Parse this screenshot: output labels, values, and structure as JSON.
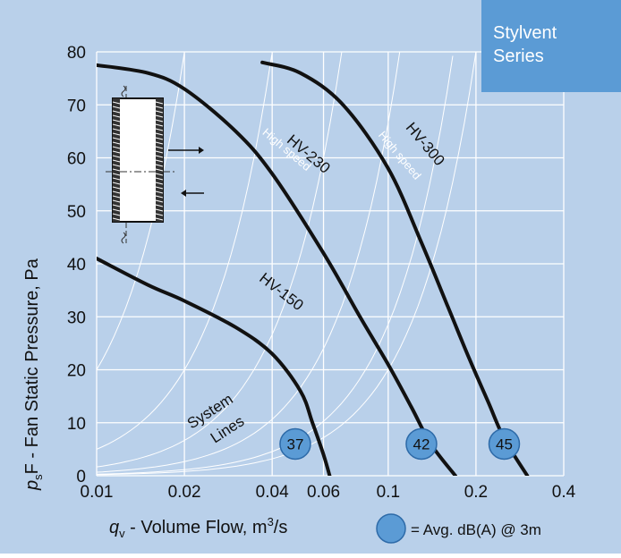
{
  "brand_box": {
    "line1": "Stylvent",
    "line2": "Series",
    "color": "#5b9bd5"
  },
  "colors": {
    "background": "#b9d0ea",
    "grid": "#ffffff",
    "curve": "#111111",
    "marker": "#5b9bd5"
  },
  "chart_data": {
    "type": "line",
    "x_scale": "log",
    "xlim": [
      0.01,
      0.4
    ],
    "ylim": [
      0,
      80
    ],
    "x_ticks": [
      0.01,
      0.02,
      0.04,
      0.06,
      0.1,
      0.2,
      0.4
    ],
    "x_tick_labels": [
      "0.01",
      "0.02",
      "0.04",
      "0.06",
      "0.1",
      "0.2",
      "0.4"
    ],
    "y_ticks": [
      0,
      10,
      20,
      30,
      40,
      50,
      60,
      70,
      80
    ],
    "y_tick_labels": [
      "0",
      "10",
      "20",
      "30",
      "40",
      "50",
      "60",
      "70",
      "80"
    ],
    "xlabel": {
      "q": "q",
      "sub": "v",
      "rest": " - Volume Flow, m",
      "sup": "3",
      "end": "/s"
    },
    "ylabel": {
      "p": "p",
      "sub": "s",
      "rest": "F - Fan Static Pressure, Pa"
    },
    "grid": true,
    "series": [
      {
        "name": "HV-150",
        "points": [
          [
            0.01,
            41
          ],
          [
            0.015,
            36
          ],
          [
            0.02,
            33
          ],
          [
            0.03,
            28
          ],
          [
            0.04,
            23
          ],
          [
            0.05,
            16
          ],
          [
            0.055,
            10
          ],
          [
            0.06,
            4
          ],
          [
            0.063,
            0
          ]
        ]
      },
      {
        "name": "HV-230",
        "subtitle": "High speed",
        "points": [
          [
            0.01,
            77.5
          ],
          [
            0.015,
            76
          ],
          [
            0.02,
            73
          ],
          [
            0.03,
            65
          ],
          [
            0.04,
            57
          ],
          [
            0.06,
            42
          ],
          [
            0.08,
            30
          ],
          [
            0.1,
            21
          ],
          [
            0.12,
            13
          ],
          [
            0.14,
            6
          ],
          [
            0.17,
            0
          ]
        ]
      },
      {
        "name": "HV-300",
        "subtitle": "High speed",
        "points": [
          [
            0.037,
            78
          ],
          [
            0.05,
            76
          ],
          [
            0.07,
            70
          ],
          [
            0.1,
            58
          ],
          [
            0.13,
            44
          ],
          [
            0.16,
            32
          ],
          [
            0.19,
            22
          ],
          [
            0.22,
            14
          ],
          [
            0.25,
            7
          ],
          [
            0.3,
            0
          ]
        ]
      }
    ],
    "system_lines_label": [
      "System",
      "Lines"
    ],
    "system_lines_k": [
      0.0005,
      0.00035,
      0.00015,
      6e-05,
      2e-05,
      5e-06
    ],
    "markers": [
      {
        "label": "37",
        "x": 0.048,
        "y": 6
      },
      {
        "label": "42",
        "x": 0.13,
        "y": 6
      },
      {
        "label": "45",
        "x": 0.25,
        "y": 6
      }
    ],
    "legend_text": "= Avg. dB(A) @ 3m"
  }
}
